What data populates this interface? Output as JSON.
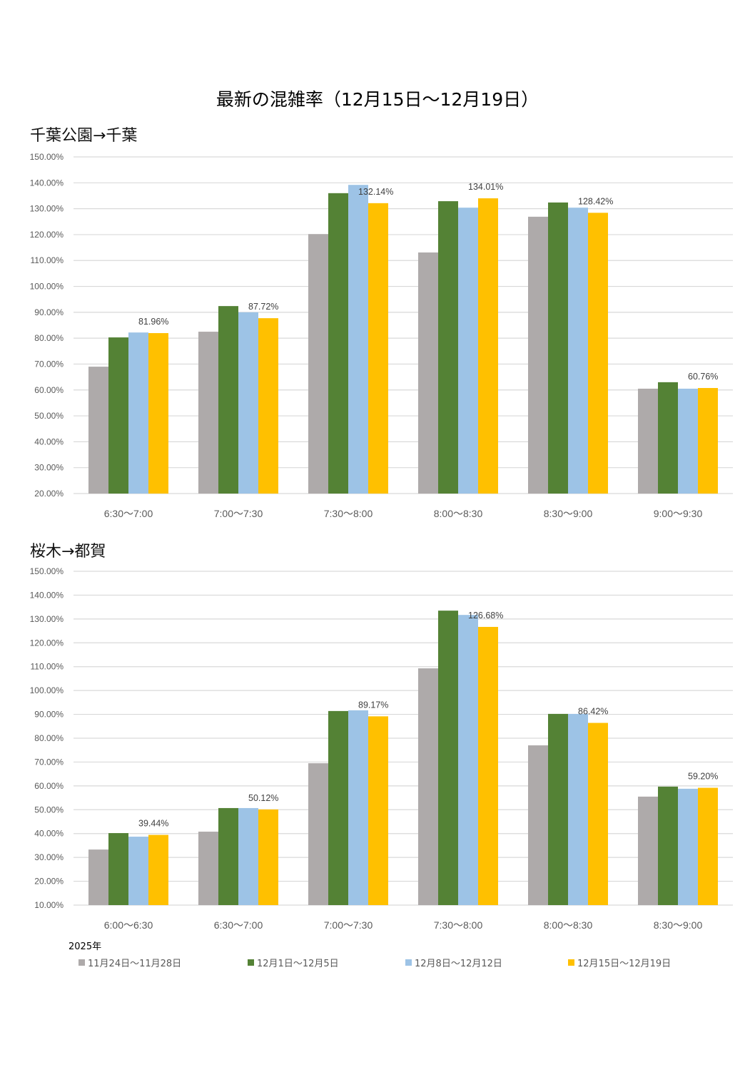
{
  "page": {
    "title": "最新の混雑率（12月15日～12月19日）",
    "legend_year": "2025年"
  },
  "legend": [
    {
      "label": "11月24日～11月28日",
      "color": "#AEAAAA"
    },
    {
      "label": "12月1日～12月5日",
      "color": "#548235"
    },
    {
      "label": "12月8日～12月12日",
      "color": "#9DC3E6"
    },
    {
      "label": "12月15日～12月19日",
      "color": "#FFC000"
    }
  ],
  "chart_data": [
    {
      "type": "bar",
      "title": "千葉公園→千葉",
      "xlabel": "",
      "ylabel": "",
      "ylim": [
        20,
        150
      ],
      "y_ticks": [
        "20.00%",
        "30.00%",
        "40.00%",
        "50.00%",
        "60.00%",
        "70.00%",
        "80.00%",
        "90.00%",
        "100.00%",
        "110.00%",
        "120.00%",
        "130.00%",
        "140.00%",
        "150.00%"
      ],
      "grid": true,
      "categories": [
        "6:30～7:00",
        "7:00～7:30",
        "7:30～8:00",
        "8:00～8:30",
        "8:30～9:00",
        "9:00～9:30"
      ],
      "series": [
        {
          "name": "11月24日～11月28日",
          "values": [
            69.0,
            82.5,
            120.2,
            113.1,
            126.9,
            60.5
          ]
        },
        {
          "name": "12月1日～12月5日",
          "values": [
            80.3,
            92.4,
            136.0,
            132.9,
            132.4,
            63.0
          ]
        },
        {
          "name": "12月8日～12月12日",
          "values": [
            82.2,
            90.0,
            139.2,
            130.4,
            130.4,
            60.5
          ]
        },
        {
          "name": "12月15日～12月19日",
          "values": [
            81.96,
            87.72,
            132.14,
            134.01,
            128.42,
            60.76
          ]
        }
      ],
      "data_labels": [
        "81.96%",
        "87.72%",
        "132.14%",
        "134.01%",
        "128.42%",
        "60.76%"
      ]
    },
    {
      "type": "bar",
      "title": "桜木→都賀",
      "xlabel": "",
      "ylabel": "",
      "ylim": [
        10,
        150
      ],
      "y_ticks": [
        "10.00%",
        "20.00%",
        "30.00%",
        "40.00%",
        "50.00%",
        "60.00%",
        "70.00%",
        "80.00%",
        "90.00%",
        "100.00%",
        "110.00%",
        "120.00%",
        "130.00%",
        "140.00%",
        "150.00%"
      ],
      "grid": true,
      "categories": [
        "6:00～6:30",
        "6:30～7:00",
        "7:00～7:30",
        "7:30～8:00",
        "8:00～8:30",
        "8:30～9:00"
      ],
      "series": [
        {
          "name": "11月24日～11月28日",
          "values": [
            33.3,
            40.8,
            69.5,
            109.3,
            77.0,
            55.5
          ]
        },
        {
          "name": "12月1日～12月5日",
          "values": [
            40.2,
            50.7,
            91.4,
            133.5,
            90.2,
            59.7
          ]
        },
        {
          "name": "12月8日～12月12日",
          "values": [
            38.7,
            50.7,
            91.7,
            131.7,
            90.2,
            58.8
          ]
        },
        {
          "name": "12月15日～12月19日",
          "values": [
            39.44,
            50.12,
            89.17,
            126.68,
            86.42,
            59.2
          ]
        }
      ],
      "data_labels": [
        "39.44%",
        "50.12%",
        "89.17%",
        "126.68%",
        "86.42%",
        "59.20%"
      ]
    }
  ]
}
